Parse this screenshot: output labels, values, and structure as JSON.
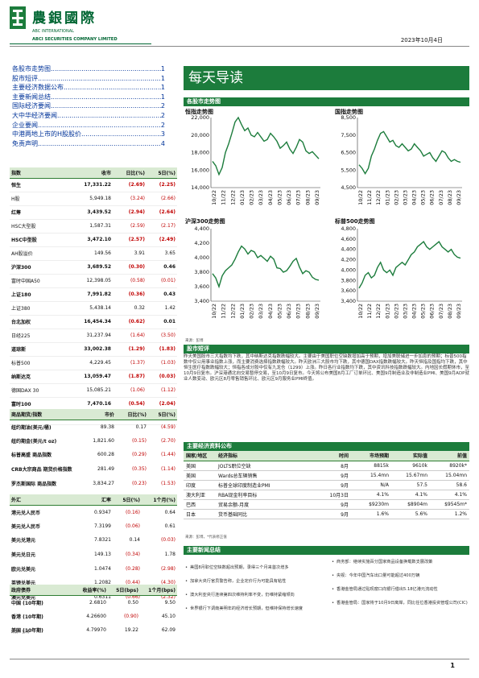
{
  "header": {
    "logo_title": "農銀國際",
    "logo_sub1": "ABC INTERNATIONAL",
    "logo_sub2": "ABCI SECURITIES COMPANY LIMITED",
    "date": "2023年10月4日",
    "brand_color": "#1c7c3c"
  },
  "toc": [
    {
      "label": "各股市走势图",
      "page": "1"
    },
    {
      "label": "股市短评",
      "page": "1"
    },
    {
      "label": "主要经济数据公布",
      "page": "1"
    },
    {
      "label": "主要新闻总结",
      "page": "1"
    },
    {
      "label": "国际经济要闻",
      "page": "2"
    },
    {
      "label": "大中华经济要闻",
      "page": "2"
    },
    {
      "label": "企业要闻",
      "page": "2"
    },
    {
      "label": "中港两地上市的H股股价",
      "page": "3"
    },
    {
      "label": "免责声明",
      "page": "4"
    }
  ],
  "indices": {
    "headers": [
      "指数",
      "收市",
      "日比(%)",
      "5日(%)"
    ],
    "rows": [
      {
        "name": "恒生",
        "close": "17,331.22",
        "d1": "(2.69)",
        "d5": "(2.25)",
        "bold": true
      },
      {
        "name": "H股",
        "close": "5,949.18",
        "d1": "(3.24)",
        "d5": "(2.66)",
        "bold": false
      },
      {
        "name": "红筹",
        "close": "3,439.52",
        "d1": "(2.94)",
        "d5": "(2.64)",
        "bold": true
      },
      {
        "name": "HSC大型股",
        "close": "1,587.31",
        "d1": "(2.59)",
        "d5": "(2.17)",
        "bold": false
      },
      {
        "name": "HSC中型股",
        "close": "3,472.10",
        "d1": "(2.57)",
        "d5": "(2.49)",
        "bold": true
      },
      {
        "name": "AH股溢价",
        "close": "149.56",
        "d1": "3.91",
        "d5": "3.65",
        "bold": false
      },
      {
        "name": "沪深300",
        "close": "3,689.52",
        "d1": "(0.30)",
        "d5": "0.46",
        "bold": true
      },
      {
        "name": "富时中国A50",
        "close": "12,398.05",
        "d1": "(0.58)",
        "d5": "(0.01)",
        "bold": false
      },
      {
        "name": "上证180",
        "close": "7,991.82",
        "d1": "(0.36)",
        "d5": "0.43",
        "bold": true
      },
      {
        "name": "上证380",
        "close": "5,438.14",
        "d1": "0.32",
        "d5": "1.42",
        "bold": false
      },
      {
        "name": "台北加权",
        "close": "16,454.34",
        "d1": "(0.62)",
        "d5": "0.01",
        "bold": true
      },
      {
        "name": "日经225",
        "close": "31,237.94",
        "d1": "(1.64)",
        "d5": "(3.50)",
        "bold": false
      },
      {
        "name": "道琼斯",
        "close": "33,002.38",
        "d1": "(1.29)",
        "d5": "(1.83)",
        "bold": true
      },
      {
        "name": "标普500",
        "close": "4,229.45",
        "d1": "(1.37)",
        "d5": "(1.03)",
        "bold": false
      },
      {
        "name": "纳斯达克",
        "close": "13,059.47",
        "d1": "(1.87)",
        "d5": "(0.03)",
        "bold": true
      },
      {
        "name": "德国DAX 30",
        "close": "15,085.21",
        "d1": "(1.06)",
        "d5": "(1.12)",
        "bold": false
      },
      {
        "name": "富时100",
        "close": "7,470.16",
        "d1": "(0.54)",
        "d5": "(2.04)",
        "bold": true
      },
      {
        "name": "法国CAC 40",
        "close": "6,997.05",
        "d1": "(1.01)",
        "d5": "(1.09)",
        "bold": false
      }
    ]
  },
  "commodities": {
    "headers": [
      "商品期货/指数",
      "市价",
      "日比(%)",
      "5日(%)"
    ],
    "rows": [
      {
        "name": "纽约期油(美元/桶)",
        "close": "89.38",
        "d1": "0.17",
        "d5": "(4.59)"
      },
      {
        "name": "纽约期金(美元/t oz)",
        "close": "1,821.60",
        "d1": "(0.15)",
        "d5": "(2.70)"
      },
      {
        "name": "标普高盛 商品指数",
        "close": "600.28",
        "d1": "(0.29)",
        "d5": "(1.44)"
      },
      {
        "name": "CRB大宗商品 期货价格指数",
        "close": "281.49",
        "d1": "(0.35)",
        "d5": "(1.14)"
      },
      {
        "name": "罗杰斯国际 商品指数",
        "close": "3,834.27",
        "d1": "(0.23)",
        "d5": "(1.53)"
      }
    ]
  },
  "fx": {
    "headers": [
      "外汇",
      "汇率",
      "5日(%)",
      "1个月(%)"
    ],
    "rows": [
      {
        "name": "港元兑人民币",
        "rate": "0.9347",
        "d5": "(0.16)",
        "m1": "0.64"
      },
      {
        "name": "美元兑人民币",
        "rate": "7.3199",
        "d5": "(0.06)",
        "m1": "0.61"
      },
      {
        "name": "美元兑港元",
        "rate": "7.8321",
        "d5": "0.14",
        "m1": "(0.03)"
      },
      {
        "name": "美元兑日元",
        "rate": "149.13",
        "d5": "(0.34)",
        "m1": "1.78"
      },
      {
        "name": "欧元兑美元",
        "rate": "1.0474",
        "d5": "(0.28)",
        "m1": "(2.98)"
      },
      {
        "name": "英镑兑美元",
        "rate": "1.2082",
        "d5": "(0.44)",
        "m1": "(4.30)"
      },
      {
        "name": "澳元兑美元",
        "rate": "0.6311",
        "d5": "(0.66)",
        "m1": "(2.32)"
      }
    ]
  },
  "bonds": {
    "headers": [
      "政府债券",
      "收益率(%)",
      "5日(bps)",
      "1个月(bps)"
    ],
    "rows": [
      {
        "name": "中国 (10年期)",
        "yield": "2.6810",
        "d5": "0.50",
        "m1": "9.50"
      },
      {
        "name": "香港 (10年期)",
        "yield": "4.26600",
        "d5": "(0.90)",
        "m1": "45.10"
      },
      {
        "name": "美国 (10年期)",
        "yield": "4.79970",
        "d5": "19.22",
        "m1": "62.09"
      }
    ],
    "source": "来源：彭博"
  },
  "main": {
    "banner": "每天导读",
    "charts_header": "各股市走势图",
    "charts_source": "来源：彭博",
    "comment_header": "股市短评",
    "comment_text": "昨天美国股市三大指数均下跌，其中纳斯达克指数跌幅较大。主要由于美国职位空缺数增加高于预期，增加美联储进一步加息的预期；标普500指数中仅公用事业指数上涨，而主要消费选择指数跌幅较大。昨天欧洲三大股市均下跌，其中德国DAX指数跌幅较大。昨天恒指及国指均下跌，其中恒生医疗指数跌幅较大；恒指各成分股中仅有九龙仓（1299）上涨。昨日各行业指数均下跌，其中资讯科技指数跌幅较大。内地因长假期休市，至10月9日复市。沪深港通北向交易暂停交易，至10月9日复市。今天将公布美国8月工厂订单环比、美国9月制造业及非制造业PMI、美国9月ADP就业人数变动、欧元区8月零售销售环比、欧元区9月服务业PMI终值。",
    "econ_header": "主要经济资料公布",
    "econ_headers": [
      "国家/地区",
      "经济指标",
      "时间",
      "市场预期",
      "实际值",
      "前值"
    ],
    "econ_rows": [
      {
        "region": "美国",
        "indicator": "JOLTS职位空缺",
        "time": "8月",
        "exp": "8815k",
        "act": "9610k",
        "prev": "8920k*"
      },
      {
        "region": "美国",
        "indicator": "Wards总车辆销售",
        "time": "9月",
        "exp": "15.4mn",
        "act": "15.67mn",
        "prev": "15.04mn"
      },
      {
        "region": "印度",
        "indicator": "标普全球印度制造业PMI",
        "time": "9月",
        "exp": "N/A",
        "act": "57.5",
        "prev": "58.6"
      },
      {
        "region": "澳大利亚",
        "indicator": "RBA现金利率目标",
        "time": "10月3日",
        "exp": "4.1%",
        "act": "4.1%",
        "prev": "4.1%"
      },
      {
        "region": "巴西",
        "indicator": "贸易余额-月度",
        "time": "9月",
        "exp": "$9230m",
        "act": "$8904m",
        "prev": "$9545m*"
      },
      {
        "region": "日本",
        "indicator": "货币基础同比",
        "time": "9月",
        "exp": "1.6%",
        "act": "5.6%",
        "prev": "1.2%"
      }
    ],
    "econ_source": "来源：彭博，*代表修正值",
    "news_header": "主要新闻总结",
    "news_left": [
      "美国8月职位空缺数超出预期，录得三个月来首次增多",
      "加拿大央行官员警告称，企业定价行为可能具有粘性",
      "澳大利亚央行连续第四次维持利率不变，仍维持紧缩倾向",
      "世界银行下调南美明年的经济增长预期，但维持保持增长速度"
    ],
    "news_right": [
      "商务部：继续实施百分国家商品设备换载数支展改策",
      "央视：今年中国汽车出口量可能超过400万辆",
      "香港金管局通过贴现窗口向银行借出5.18亿港元流动性",
      "香港金管局：国家将于10月9日离岸，同比任位香港投资管理公司(CIC)"
    ]
  },
  "charts": [
    {
      "title": "恒指走势图",
      "yticks": [
        "14,000",
        "16,000",
        "18,000",
        "20,000",
        "22,000"
      ],
      "ymin": 14000,
      "ymax": 22000,
      "xticks": [
        "10/22",
        "11/22",
        "12/22",
        "01/23",
        "02/23",
        "03/23",
        "04/23",
        "05/23",
        "06/23",
        "07/23",
        "08/23",
        "09/23"
      ]
    },
    {
      "title": "国指走势图",
      "yticks": [
        "4,500",
        "5,500",
        "6,500",
        "7,500",
        "8,500"
      ],
      "ymin": 4500,
      "ymax": 8500,
      "xticks": [
        "10/22",
        "11/22",
        "12/22",
        "01/23",
        "02/23",
        "03/23",
        "04/23",
        "05/23",
        "06/23",
        "07/23",
        "08/23",
        "09/23"
      ]
    },
    {
      "title": "沪深300走势图",
      "yticks": [
        "3,400",
        "3,600",
        "3,800",
        "4,000",
        "4,200",
        "4,400"
      ],
      "ymin": 3400,
      "ymax": 4400,
      "xticks": [
        "10/22",
        "11/22",
        "12/22",
        "01/23",
        "02/23",
        "03/23",
        "04/23",
        "05/23",
        "06/23",
        "07/23",
        "08/23",
        "09/23"
      ]
    },
    {
      "title": "标普500走势图",
      "yticks": [
        "3,400",
        "3,600",
        "3,800",
        "4,000",
        "4,200",
        "4,400",
        "4,600",
        "4,800"
      ],
      "ymin": 3400,
      "ymax": 4800,
      "xticks": [
        "10/22",
        "11/22",
        "12/22",
        "01/23",
        "02/23",
        "03/23",
        "04/23",
        "05/23",
        "06/23",
        "07/23",
        "08/23",
        "09/23"
      ]
    }
  ],
  "chart_data": [
    {
      "type": "line",
      "series": [
        {
          "values": [
            17000,
            16500,
            15500,
            16300,
            18000,
            19000,
            20200,
            21500,
            22000,
            21200,
            20500,
            20800,
            20000,
            19800,
            20300,
            19800,
            19300,
            19500,
            20200,
            19800,
            19300,
            18500,
            18800,
            19200,
            18400,
            17900,
            18600,
            19500,
            19200,
            18200,
            17900,
            18100,
            17700,
            17300
          ]
        }
      ]
    },
    {
      "type": "line",
      "series": [
        {
          "values": [
            5800,
            5600,
            5300,
            5600,
            6300,
            6700,
            7200,
            7600,
            7700,
            7400,
            7100,
            7200,
            6900,
            6800,
            7000,
            6800,
            6600,
            6700,
            7000,
            6800,
            6600,
            6300,
            6400,
            6500,
            6200,
            6000,
            6300,
            6600,
            6500,
            6200,
            6000,
            6100,
            6000,
            5950
          ]
        }
      ]
    },
    {
      "type": "line",
      "series": [
        {
          "values": [
            3780,
            3720,
            3600,
            3750,
            3820,
            3860,
            3900,
            3980,
            4080,
            4160,
            4120,
            4050,
            4100,
            4080,
            4000,
            4030,
            3990,
            3950,
            4020,
            3980,
            3860,
            3850,
            3800,
            3820,
            3880,
            3950,
            3990,
            3870,
            3780,
            3820,
            3800,
            3730,
            3700,
            3690
          ]
        }
      ]
    },
    {
      "type": "line",
      "series": [
        {
          "values": [
            3650,
            3750,
            3900,
            3950,
            3850,
            3900,
            4050,
            4150,
            4000,
            3950,
            4000,
            3900,
            4050,
            4100,
            4150,
            4100,
            4200,
            4300,
            4350,
            4450,
            4500,
            4550,
            4450,
            4400,
            4450,
            4500,
            4550,
            4450,
            4400,
            4350,
            4400,
            4300,
            4250,
            4230
          ]
        }
      ]
    }
  ]
}
